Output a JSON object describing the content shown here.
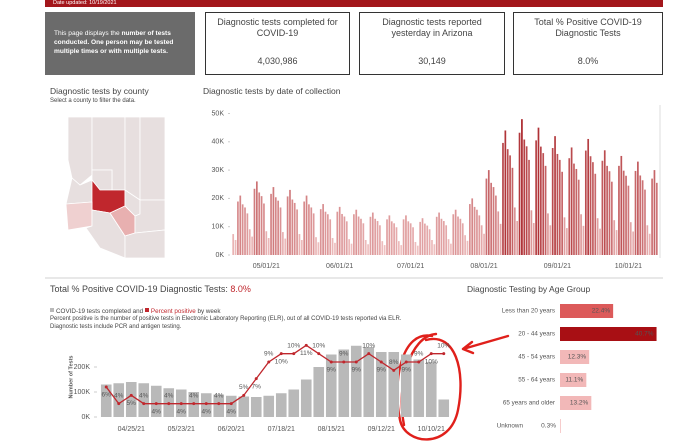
{
  "header": {
    "date_updated": "Date updated: 10/19/2021"
  },
  "info": {
    "lead": "This page displays the ",
    "bold": "number of tests conducted. One person may be tested multiple times or with multiple tests."
  },
  "kpis": [
    {
      "label": "Diagnostic tests completed for COVID-19",
      "value": "4,030,986"
    },
    {
      "label": "Diagnostic tests reported yesterday in Arizona",
      "value": "30,149"
    },
    {
      "label": "Total % Positive COVID-19 Diagnostic Tests",
      "value": "8.0%"
    }
  ],
  "map": {
    "title": "Diagnostic tests by county",
    "subtitle": "Select a county to filter the data."
  },
  "chart_data": [
    {
      "type": "bar",
      "title": "Diagnostic tests by date of collection",
      "categories": [
        null,
        null,
        null,
        null,
        null,
        null,
        null,
        null,
        null,
        null,
        null,
        null,
        null,
        null,
        "05/01/21",
        null,
        null,
        null,
        null,
        null,
        null,
        null,
        null,
        null,
        null,
        null,
        null,
        null,
        null,
        null,
        null,
        null,
        null,
        null,
        null,
        null,
        null,
        null,
        null,
        null,
        null,
        null,
        null,
        null,
        null,
        "06/01/21",
        null,
        null,
        null,
        null,
        null,
        null,
        null,
        null,
        null,
        null,
        null,
        null,
        null,
        null,
        null,
        null,
        null,
        null,
        null,
        null,
        null,
        null,
        null,
        null,
        null,
        null,
        null,
        null,
        null,
        "07/01/21",
        null,
        null,
        null,
        null,
        null,
        null,
        null,
        null,
        null,
        null,
        null,
        null,
        null,
        null,
        null,
        null,
        null,
        null,
        null,
        null,
        null,
        null,
        null,
        null,
        null,
        null,
        null,
        null,
        null,
        null,
        "08/01/21",
        null,
        null,
        null,
        null,
        null,
        null,
        null,
        null,
        null,
        null,
        null,
        null,
        null,
        null,
        null,
        null,
        null,
        null,
        null,
        null,
        null,
        null,
        null,
        null,
        null,
        null,
        null,
        null,
        null,
        null,
        "09/01/21",
        null,
        null,
        null,
        null,
        null,
        null,
        null,
        null,
        null,
        null,
        null,
        null,
        null,
        null,
        null,
        null,
        null,
        null,
        null,
        null,
        null,
        null,
        null,
        null,
        null,
        null,
        null,
        null,
        null,
        "10/01/21",
        null,
        null,
        null,
        null,
        null,
        null,
        null,
        null,
        null,
        null,
        null,
        null
      ],
      "values": [
        7400,
        5300,
        18900,
        21000,
        17900,
        16800,
        14700,
        9100,
        6500,
        23400,
        26000,
        22100,
        20800,
        18200,
        8400,
        6000,
        21600,
        24000,
        20400,
        19200,
        16800,
        8100,
        5800,
        20700,
        23000,
        19600,
        18400,
        16100,
        7400,
        5300,
        18900,
        21000,
        17900,
        16800,
        14700,
        6300,
        4500,
        16200,
        18000,
        15300,
        14400,
        12600,
        6000,
        4300,
        15300,
        17000,
        14500,
        13600,
        11900,
        5600,
        4000,
        14400,
        16000,
        13600,
        12800,
        11200,
        5300,
        3800,
        13500,
        15000,
        12800,
        12000,
        10500,
        4900,
        3500,
        12600,
        14000,
        11900,
        11200,
        9800,
        4900,
        3500,
        12600,
        14000,
        11900,
        11200,
        9800,
        4600,
        3300,
        11700,
        13000,
        11100,
        10400,
        9100,
        5300,
        3800,
        13500,
        15000,
        12800,
        12000,
        10500,
        5600,
        4000,
        14400,
        16000,
        13600,
        12800,
        11200,
        7000,
        5000,
        18000,
        20000,
        17000,
        16000,
        14000,
        10500,
        7500,
        27000,
        30000,
        25500,
        24000,
        21000,
        15400,
        11000,
        39600,
        44000,
        37400,
        35200,
        30800,
        16800,
        12000,
        43200,
        48000,
        40800,
        38400,
        33600,
        15800,
        11300,
        40500,
        45000,
        38300,
        36000,
        31500,
        14700,
        10500,
        37800,
        42000,
        35700,
        33600,
        29400,
        13300,
        9500,
        34200,
        38000,
        32300,
        30400,
        26600,
        14400,
        10300,
        36900,
        41000,
        34900,
        32800,
        28700,
        13000,
        9300,
        33300,
        37000,
        31500,
        29600,
        25900,
        12300,
        8800,
        31500,
        35000,
        29800,
        28000,
        24500,
        11600,
        8300,
        29700,
        33000,
        28100,
        26400,
        23100,
        10500,
        7500,
        27000,
        30000,
        25500
      ],
      "color_scale": [
        "#f4cccc",
        "#a3161b"
      ],
      "ylim": [
        0,
        53000
      ],
      "yticks": [
        {
          "value": 0,
          "label": "0K"
        },
        {
          "value": 10000,
          "label": "10K"
        },
        {
          "value": 20000,
          "label": "20K"
        },
        {
          "value": 30000,
          "label": "30K"
        },
        {
          "value": 40000,
          "label": "40K"
        },
        {
          "value": 50000,
          "label": "50K"
        }
      ]
    },
    {
      "type": "bar-line",
      "title": "Total % Positive COVID-19 Diagnostic Tests: ",
      "title_value": "8.0%",
      "legend_connectors": [
        "and",
        "by week"
      ],
      "notes": [
        "Percent positive is the number of positive tests in Electronic Laboratory Reporting (ELR), out of all COVID-19 tests reported via ELR.",
        "Diagnostic tests include PCR and antigen testing."
      ],
      "y_label": "Number of Tests",
      "categories": [
        null,
        null,
        "04/25/21",
        null,
        null,
        null,
        "05/23/21",
        null,
        null,
        null,
        "06/20/21",
        null,
        null,
        null,
        "07/18/21",
        null,
        null,
        null,
        "08/15/21",
        null,
        null,
        null,
        "09/12/21",
        null,
        null,
        null,
        "10/10/21",
        null
      ],
      "series": [
        {
          "name": "COVID-19 tests completed",
          "color": "#b9b9b9",
          "values": [
            130000,
            135000,
            140000,
            135000,
            125000,
            115000,
            110000,
            100000,
            95000,
            90000,
            85000,
            82000,
            80000,
            85000,
            95000,
            110000,
            150000,
            200000,
            250000,
            270000,
            285000,
            280000,
            260000,
            260000,
            250000,
            230000,
            220000,
            70000
          ]
        },
        {
          "name": "Percent positive",
          "color": "#c0272d",
          "axis": "y2",
          "values": [
            6,
            4,
            5,
            4,
            4,
            4,
            4,
            4,
            4,
            4,
            4,
            5,
            7,
            9,
            10,
            10,
            11,
            10,
            9,
            9,
            9,
            10,
            9,
            8,
            9,
            9,
            10,
            10
          ],
          "value_labels": [
            "6%",
            "4%",
            "5%",
            "4%",
            "4%",
            "4%",
            "4%",
            "4%",
            "4%",
            "4%",
            "4%",
            "5%",
            "7%",
            "9%",
            "10%",
            "10%",
            "11%",
            "10%",
            "9%",
            "9%",
            "9%",
            "10%",
            "9%",
            "8%",
            "9%",
            "9%",
            "10%",
            "10%"
          ]
        }
      ],
      "ylim": [
        0,
        320000
      ],
      "yticks": [
        {
          "value": 0,
          "label": "0K"
        },
        {
          "value": 100000,
          "label": "100K"
        },
        {
          "value": 200000,
          "label": "200K"
        }
      ],
      "y2lim": [
        2.4,
        12
      ]
    },
    {
      "type": "hbar",
      "title": "Diagnostic Testing by Age Group",
      "categories": [
        "Less than 20 years",
        "20 - 44 years",
        "45 - 54 years",
        "55 - 64 years",
        "65 years and older",
        "Unknown"
      ],
      "values": [
        22.4,
        40.7,
        12.3,
        11.1,
        13.2,
        0.3
      ],
      "value_labels": [
        "22.4%",
        "40.7%",
        "12.3%",
        "11.1%",
        "13.2%",
        "0.3%"
      ],
      "colors": [
        "#dc5a5a",
        "#a80f14",
        "#f2b8b8",
        "#f2b8b8",
        "#f2b8b8",
        "#f2b8b8"
      ],
      "xlim": [
        0,
        43
      ]
    }
  ]
}
